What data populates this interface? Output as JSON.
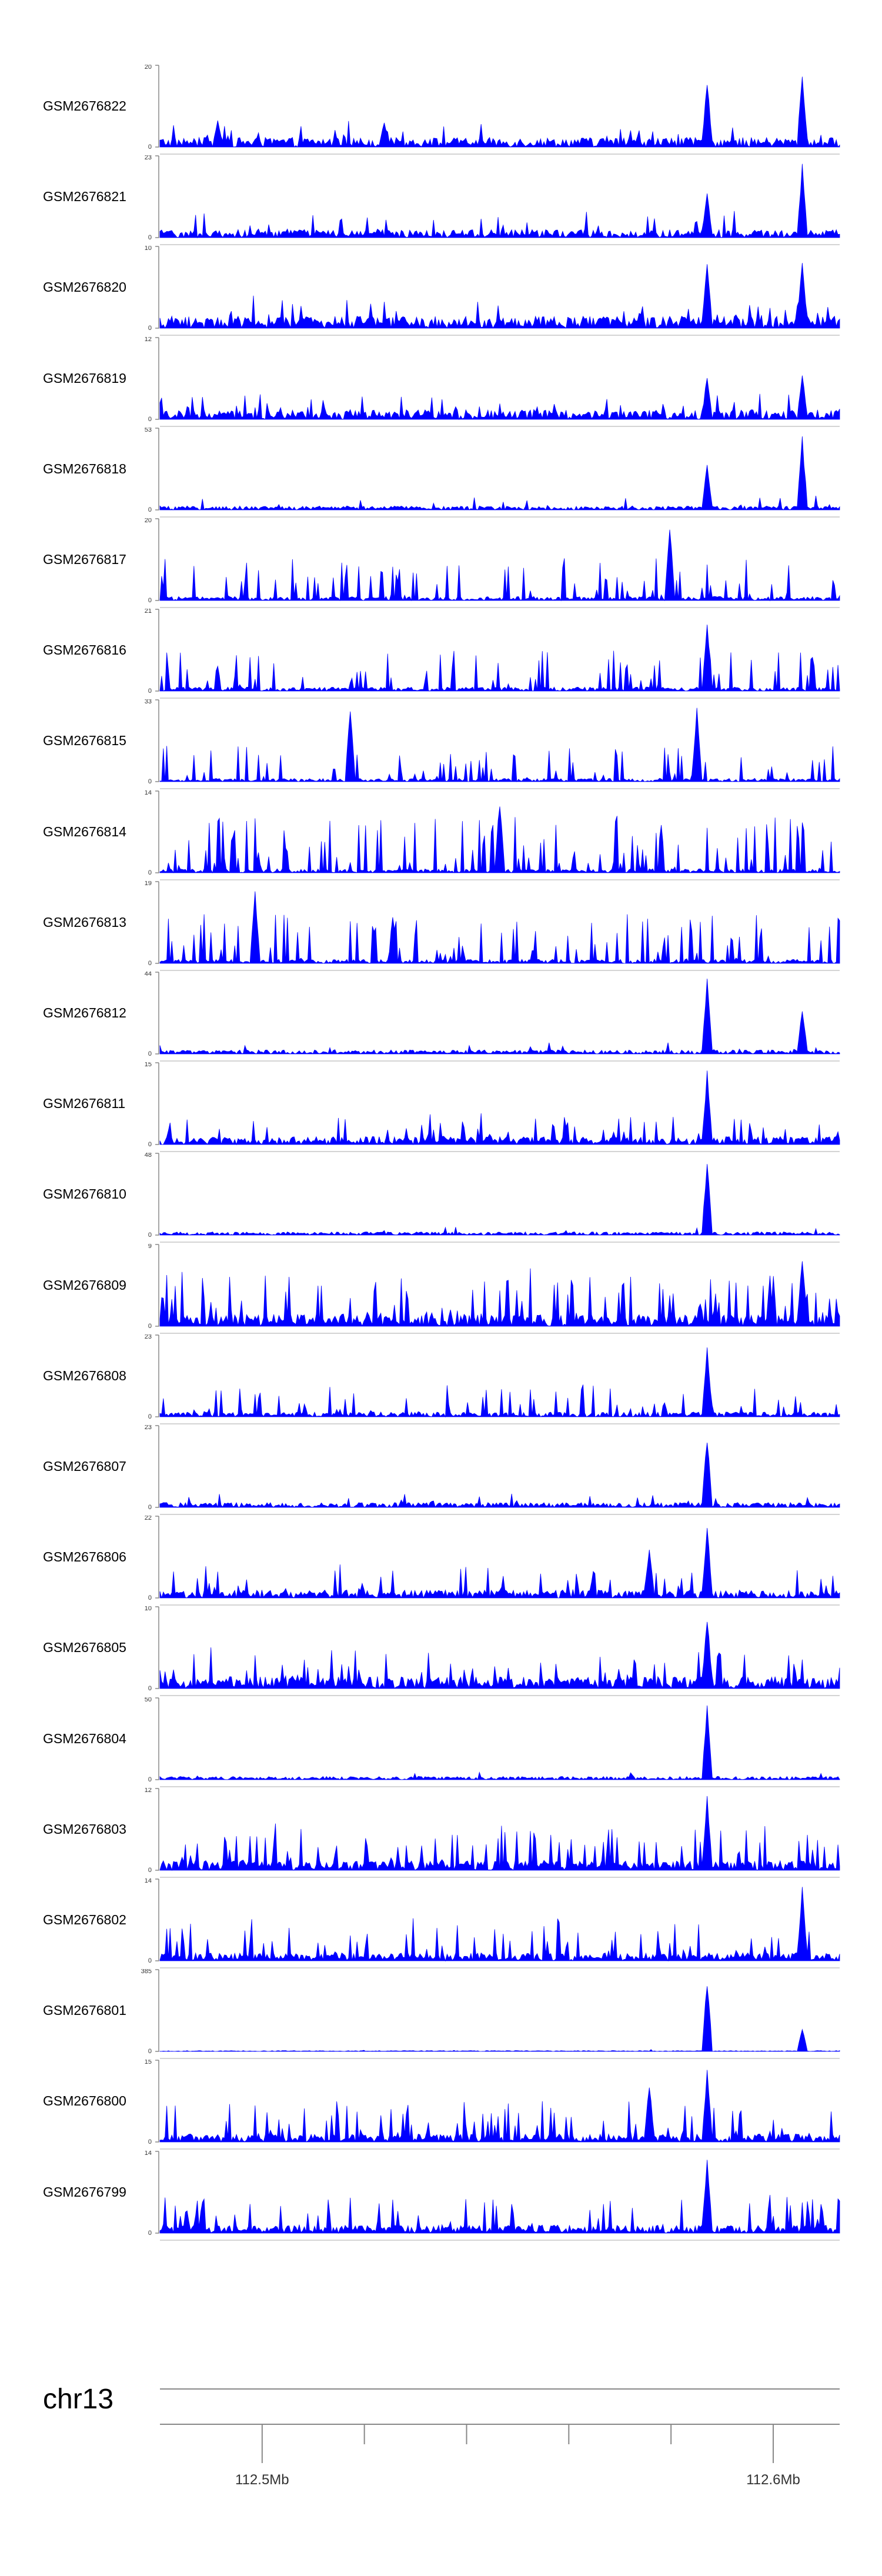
{
  "tracks": [
    {
      "name": "GSM2676822",
      "ymax": "20",
      "ymin": "0",
      "peaks": [
        {
          "pos": 0.805,
          "h": 0.9
        },
        {
          "pos": 0.945,
          "h": 1.0
        },
        {
          "pos": 0.085,
          "h": 0.35
        },
        {
          "pos": 0.33,
          "h": 0.35
        }
      ],
      "baseline": 0.12,
      "noise": 0.25
    },
    {
      "name": "GSM2676821",
      "ymax": "23",
      "ymin": "0",
      "peaks": [
        {
          "pos": 0.805,
          "h": 0.6
        },
        {
          "pos": 0.945,
          "h": 0.95
        }
      ],
      "baseline": 0.1,
      "noise": 0.3
    },
    {
      "name": "GSM2676820",
      "ymax": "10",
      "ymin": "0",
      "peaks": [
        {
          "pos": 0.805,
          "h": 0.9
        },
        {
          "pos": 0.945,
          "h": 0.9
        }
      ],
      "baseline": 0.15,
      "noise": 0.3
    },
    {
      "name": "GSM2676819",
      "ymax": "12",
      "ymin": "0",
      "peaks": [
        {
          "pos": 0.805,
          "h": 0.6
        },
        {
          "pos": 0.945,
          "h": 0.6
        }
      ],
      "baseline": 0.12,
      "noise": 0.3
    },
    {
      "name": "GSM2676818",
      "ymax": "53",
      "ymin": "0",
      "peaks": [
        {
          "pos": 0.805,
          "h": 0.6
        },
        {
          "pos": 0.945,
          "h": 0.95
        }
      ],
      "baseline": 0.05,
      "noise": 0.15
    },
    {
      "name": "GSM2676817",
      "ymax": "20",
      "ymin": "0",
      "peaks": [
        {
          "pos": 0.75,
          "h": 0.95
        }
      ],
      "baseline": 0.05,
      "noise": 0.55
    },
    {
      "name": "GSM2676816",
      "ymax": "21",
      "ymin": "0",
      "peaks": [
        {
          "pos": 0.805,
          "h": 0.9
        }
      ],
      "baseline": 0.05,
      "noise": 0.55
    },
    {
      "name": "GSM2676815",
      "ymax": "33",
      "ymin": "0",
      "peaks": [
        {
          "pos": 0.28,
          "h": 0.95
        },
        {
          "pos": 0.79,
          "h": 0.95
        }
      ],
      "baseline": 0.04,
      "noise": 0.5
    },
    {
      "name": "GSM2676814",
      "ymax": "14",
      "ymin": "0",
      "peaks": [
        {
          "pos": 0.5,
          "h": 0.95
        }
      ],
      "baseline": 0.05,
      "noise": 0.75
    },
    {
      "name": "GSM2676813",
      "ymax": "19",
      "ymin": "0",
      "peaks": [
        {
          "pos": 0.14,
          "h": 0.95
        }
      ],
      "baseline": 0.05,
      "noise": 0.65
    },
    {
      "name": "GSM2676812",
      "ymax": "44",
      "ymin": "0",
      "peaks": [
        {
          "pos": 0.805,
          "h": 0.95
        },
        {
          "pos": 0.945,
          "h": 0.6
        }
      ],
      "baseline": 0.05,
      "noise": 0.12
    },
    {
      "name": "GSM2676811",
      "ymax": "15",
      "ymin": "0",
      "peaks": [
        {
          "pos": 0.805,
          "h": 0.95
        }
      ],
      "baseline": 0.1,
      "noise": 0.35
    },
    {
      "name": "GSM2676810",
      "ymax": "48",
      "ymin": "0",
      "peaks": [
        {
          "pos": 0.805,
          "h": 0.95
        }
      ],
      "baseline": 0.04,
      "noise": 0.08
    },
    {
      "name": "GSM2676809",
      "ymax": "9",
      "ymin": "0",
      "peaks": [
        {
          "pos": 0.945,
          "h": 0.95
        }
      ],
      "baseline": 0.15,
      "noise": 0.65
    },
    {
      "name": "GSM2676808",
      "ymax": "23",
      "ymin": "0",
      "peaks": [
        {
          "pos": 0.805,
          "h": 0.95
        }
      ],
      "baseline": 0.06,
      "noise": 0.4
    },
    {
      "name": "GSM2676807",
      "ymax": "23",
      "ymin": "0",
      "peaks": [
        {
          "pos": 0.805,
          "h": 0.95
        }
      ],
      "baseline": 0.06,
      "noise": 0.15
    },
    {
      "name": "GSM2676806",
      "ymax": "22",
      "ymin": "0",
      "peaks": [
        {
          "pos": 0.805,
          "h": 0.95
        },
        {
          "pos": 0.72,
          "h": 0.7
        }
      ],
      "baseline": 0.1,
      "noise": 0.4
    },
    {
      "name": "GSM2676805",
      "ymax": "10",
      "ymin": "0",
      "peaks": [
        {
          "pos": 0.805,
          "h": 0.95
        }
      ],
      "baseline": 0.15,
      "noise": 0.45
    },
    {
      "name": "GSM2676804",
      "ymax": "50",
      "ymin": "0",
      "peaks": [
        {
          "pos": 0.805,
          "h": 0.95
        }
      ],
      "baseline": 0.04,
      "noise": 0.08
    },
    {
      "name": "GSM2676803",
      "ymax": "12",
      "ymin": "0",
      "peaks": [
        {
          "pos": 0.805,
          "h": 0.95
        }
      ],
      "baseline": 0.12,
      "noise": 0.55
    },
    {
      "name": "GSM2676802",
      "ymax": "14",
      "ymin": "0",
      "peaks": [
        {
          "pos": 0.945,
          "h": 0.95
        }
      ],
      "baseline": 0.1,
      "noise": 0.5
    },
    {
      "name": "GSM2676801",
      "ymax": "385",
      "ymin": "0",
      "peaks": [
        {
          "pos": 0.805,
          "h": 0.95
        },
        {
          "pos": 0.945,
          "h": 0.3
        }
      ],
      "baseline": 0.01,
      "noise": 0.02
    },
    {
      "name": "GSM2676800",
      "ymax": "15",
      "ymin": "0",
      "peaks": [
        {
          "pos": 0.805,
          "h": 0.95
        },
        {
          "pos": 0.72,
          "h": 0.75
        }
      ],
      "baseline": 0.1,
      "noise": 0.5
    },
    {
      "name": "GSM2676799",
      "ymax": "14",
      "ymin": "0",
      "peaks": [
        {
          "pos": 0.805,
          "h": 0.95
        }
      ],
      "baseline": 0.1,
      "noise": 0.45
    }
  ],
  "chart_data": {
    "type": "area",
    "series_color": "#0000ff",
    "series": [
      {
        "name": "GSM2676822",
        "ylim": [
          0,
          20
        ]
      },
      {
        "name": "GSM2676821",
        "ylim": [
          0,
          23
        ]
      },
      {
        "name": "GSM2676820",
        "ylim": [
          0,
          10
        ]
      },
      {
        "name": "GSM2676819",
        "ylim": [
          0,
          12
        ]
      },
      {
        "name": "GSM2676818",
        "ylim": [
          0,
          53
        ]
      },
      {
        "name": "GSM2676817",
        "ylim": [
          0,
          20
        ]
      },
      {
        "name": "GSM2676816",
        "ylim": [
          0,
          21
        ]
      },
      {
        "name": "GSM2676815",
        "ylim": [
          0,
          33
        ]
      },
      {
        "name": "GSM2676814",
        "ylim": [
          0,
          14
        ]
      },
      {
        "name": "GSM2676813",
        "ylim": [
          0,
          19
        ]
      },
      {
        "name": "GSM2676812",
        "ylim": [
          0,
          44
        ]
      },
      {
        "name": "GSM2676811",
        "ylim": [
          0,
          15
        ]
      },
      {
        "name": "GSM2676810",
        "ylim": [
          0,
          48
        ]
      },
      {
        "name": "GSM2676809",
        "ylim": [
          0,
          9
        ]
      },
      {
        "name": "GSM2676808",
        "ylim": [
          0,
          23
        ]
      },
      {
        "name": "GSM2676807",
        "ylim": [
          0,
          23
        ]
      },
      {
        "name": "GSM2676806",
        "ylim": [
          0,
          22
        ]
      },
      {
        "name": "GSM2676805",
        "ylim": [
          0,
          10
        ]
      },
      {
        "name": "GSM2676804",
        "ylim": [
          0,
          50
        ]
      },
      {
        "name": "GSM2676803",
        "ylim": [
          0,
          12
        ]
      },
      {
        "name": "GSM2676802",
        "ylim": [
          0,
          14
        ]
      },
      {
        "name": "GSM2676801",
        "ylim": [
          0,
          385
        ]
      },
      {
        "name": "GSM2676800",
        "ylim": [
          0,
          15
        ]
      },
      {
        "name": "GSM2676799",
        "ylim": [
          0,
          14
        ]
      }
    ],
    "xlim_mb": [
      112.48,
      112.613
    ],
    "x_ticks": [
      {
        "value": 112.5,
        "label": "112.5Mb",
        "major": true
      },
      {
        "value": 112.52,
        "label": "",
        "major": false
      },
      {
        "value": 112.54,
        "label": "",
        "major": false
      },
      {
        "value": 112.56,
        "label": "",
        "major": false
      },
      {
        "value": 112.58,
        "label": "",
        "major": false
      },
      {
        "value": 112.6,
        "label": "112.6Mb",
        "major": true
      }
    ]
  },
  "ideogram": {
    "chromosome": "chr13"
  }
}
